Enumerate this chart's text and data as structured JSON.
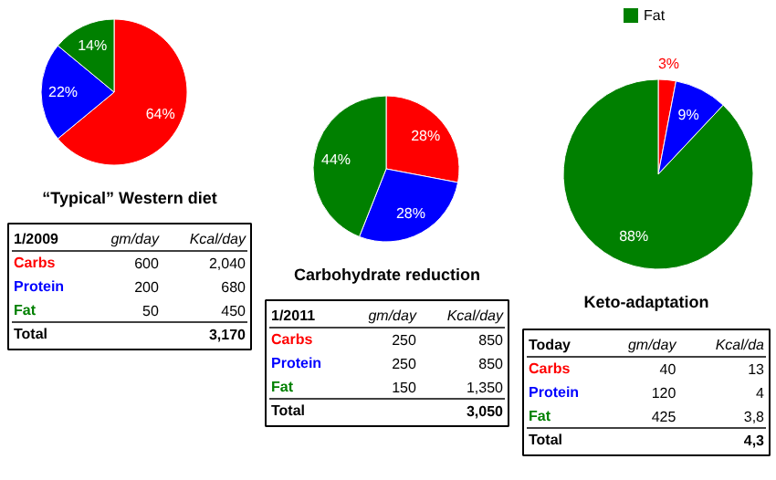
{
  "chart_data": [
    {
      "type": "pie",
      "title": "“Typical” Western diet",
      "categories": [
        null,
        null,
        null
      ],
      "values": [
        64,
        22,
        14
      ],
      "colors": [
        "#ff0000",
        "#0000ff",
        "#008000"
      ],
      "value_labels": [
        "64%",
        "22%",
        "14%"
      ],
      "annotations": [
        "1/2009",
        "gm/day",
        "Kcal/day",
        "Carbs",
        "600",
        "2,040",
        "Protein",
        "200",
        "680",
        "Fat",
        "50",
        "450",
        "Total",
        "3,170"
      ]
    },
    {
      "type": "pie",
      "title": "Carbohydrate reduction",
      "categories": [
        null,
        null,
        null
      ],
      "values": [
        28,
        28,
        44
      ],
      "colors": [
        "#ff0000",
        "#0000ff",
        "#008000"
      ],
      "value_labels": [
        "28%",
        "28%",
        "44%"
      ],
      "annotations": [
        "1/2011",
        "gm/day",
        "Kcal/day",
        "Carbs",
        "250",
        "850",
        "Protein",
        "250",
        "850",
        "Fat",
        "150",
        "1,350",
        "Total",
        "3,050"
      ]
    },
    {
      "type": "pie",
      "title": "Keto-adaptation",
      "categories": [
        null,
        null,
        "Fat"
      ],
      "values": [
        3,
        9,
        88
      ],
      "colors": [
        "#ff0000",
        "#0000ff",
        "#008000"
      ],
      "value_labels": [
        "3%",
        "9%",
        "88%"
      ],
      "legend": "top",
      "annotations": [
        "Today",
        "gm/day",
        "Kcal/da",
        "Carbs",
        "40",
        "13",
        "Protein",
        "120",
        "4",
        "Fat",
        "425",
        "3,8",
        "Total",
        "4,3"
      ]
    }
  ]
}
